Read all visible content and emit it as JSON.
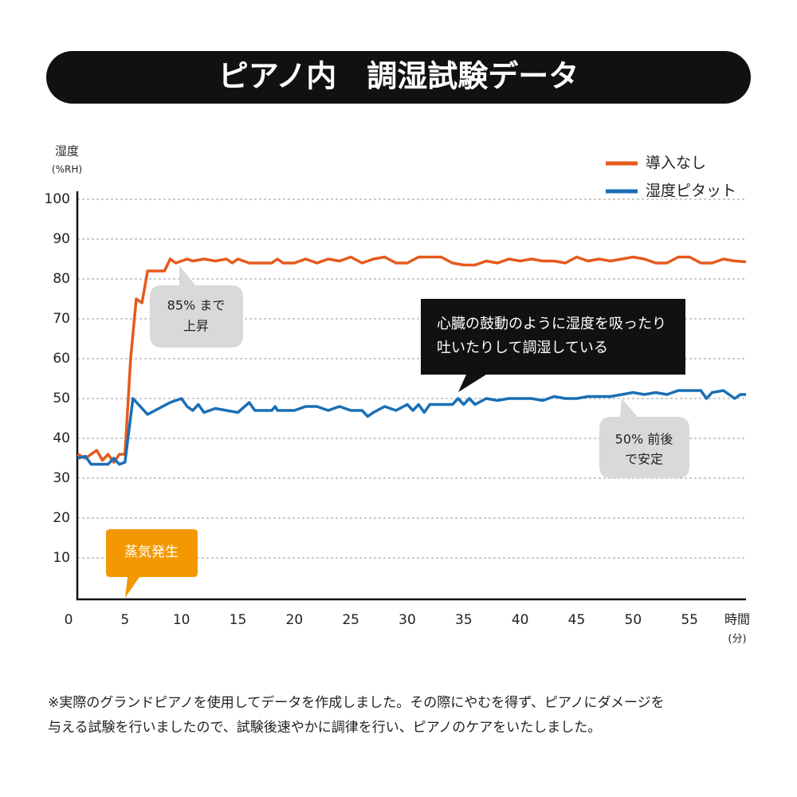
{
  "chart_data": {
    "type": "line",
    "title": "ピアノ内　調湿試験データ",
    "y_label": "湿度",
    "y_unit": "(%RH)",
    "x_label": "時間",
    "x_unit": "(分)",
    "xlim": [
      0,
      60
    ],
    "xticks": [
      0,
      5,
      10,
      15,
      20,
      25,
      30,
      35,
      40,
      45,
      50,
      55
    ],
    "ylim": [
      0,
      100
    ],
    "yticks": [
      10,
      20,
      30,
      40,
      50,
      60,
      70,
      80,
      90,
      100
    ],
    "grid": true,
    "legend": "upper right",
    "series": [
      {
        "name": "導入なし",
        "color": "#e55a1c",
        "x": [
          0.8,
          1.5,
          2.5,
          3,
          3.5,
          4,
          4.5,
          5,
          5.5,
          6,
          6.5,
          7,
          8,
          8.5,
          9,
          9.5,
          10,
          10.5,
          11,
          12,
          13,
          14,
          14.5,
          15,
          16,
          17,
          18,
          18.5,
          19,
          20,
          21,
          22,
          23,
          24,
          25,
          26,
          27,
          28,
          29,
          30,
          31,
          32,
          33,
          34,
          35,
          36,
          37,
          38,
          39,
          40,
          41,
          42,
          43,
          44,
          45,
          46,
          47,
          48,
          49,
          50,
          51,
          52,
          53,
          54,
          55,
          56,
          57,
          58,
          59,
          60
        ],
        "values": [
          36,
          35,
          37,
          34.5,
          36,
          34,
          36,
          36,
          60,
          75,
          74,
          82,
          82,
          82,
          85,
          84,
          84.5,
          85,
          84.5,
          85,
          84.5,
          85,
          84,
          85,
          84,
          84,
          84,
          85,
          84,
          84,
          85,
          84,
          85,
          84.5,
          85.5,
          84,
          85,
          85.5,
          84,
          84,
          85.5,
          85.5,
          85.5,
          84,
          83.5,
          83.5,
          84.5,
          84,
          85,
          84.5,
          85,
          84.5,
          84.5,
          84,
          85.5,
          84.5,
          85,
          84.5,
          85,
          85.5,
          85,
          84,
          84,
          85.5,
          85.5,
          84,
          84,
          85,
          84.5,
          84.3
        ]
      },
      {
        "name": "湿度ピタット",
        "color": "#1a6fb5",
        "x": [
          0.8,
          1.5,
          2,
          3,
          3.5,
          4,
          4.5,
          5,
          5.7,
          7,
          8,
          9,
          10,
          10.5,
          11,
          11.5,
          12,
          13,
          14,
          15,
          16,
          16.5,
          18,
          18.3,
          18.5,
          20,
          21,
          22,
          23,
          24,
          25,
          26,
          26.5,
          27,
          28,
          29,
          30,
          30.5,
          31,
          31.5,
          32,
          33,
          34,
          34.5,
          35,
          35.5,
          36,
          37,
          38,
          39,
          40,
          41,
          42,
          43,
          44,
          45,
          46,
          47,
          48,
          49,
          50,
          51,
          52,
          53,
          54,
          55,
          56,
          56.5,
          57,
          58,
          59,
          59.5,
          60
        ],
        "values": [
          35,
          35.5,
          33.5,
          33.5,
          33.5,
          35,
          33.5,
          34,
          50,
          46,
          47.5,
          49,
          50,
          48,
          47,
          48.5,
          46.5,
          47.5,
          47,
          46.5,
          49,
          47,
          47,
          48,
          47,
          47,
          48,
          48,
          47,
          48,
          47,
          47,
          45.5,
          46.5,
          48,
          47,
          48.5,
          47,
          48.5,
          46.5,
          48.5,
          48.5,
          48.5,
          50,
          48.5,
          50,
          48.5,
          50,
          49.5,
          50,
          50,
          50,
          49.5,
          50.5,
          50,
          50,
          50.5,
          50.5,
          50.5,
          51,
          51.5,
          51,
          51.5,
          51,
          52,
          52,
          52,
          50,
          51.5,
          52,
          50,
          51,
          51
        ]
      }
    ],
    "annotations": [
      {
        "lines": [
          "85% まで",
          "上昇"
        ]
      },
      {
        "lines": [
          "心臓の鼓動のように湿度を吸ったり",
          "吐いたりして調湿している"
        ]
      },
      {
        "lines": [
          "50% 前後",
          "で安定"
        ]
      },
      {
        "lines": [
          "蒸気発生"
        ]
      }
    ],
    "footnote": [
      "※実際のグランドピアノを使用してデータを作成しました。その際にやむを得ず、ピアノにダメージを",
      "与える試験を行いましたので、試験後速やかに調律を行い、ピアノのケアをいたしました。"
    ]
  }
}
